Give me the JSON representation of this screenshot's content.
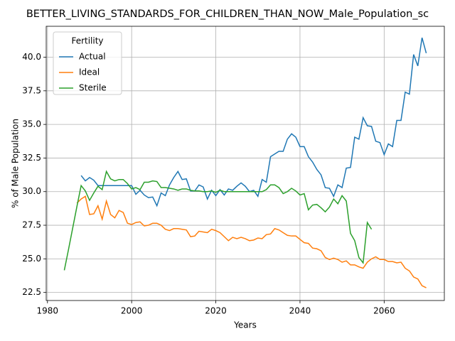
{
  "chart_data": {
    "type": "line",
    "title": "BETTER_LIVING_STANDARDS_FOR_CHILDREN_THAN_NOW_Male_Population_sc",
    "x_label": "Years",
    "y_label": "% of Male Population",
    "legend_title": "Fertility",
    "legend": "upper left",
    "grid": true,
    "x": [
      1984,
      1985,
      1986,
      1987,
      1988,
      1989,
      1990,
      1991,
      1992,
      1993,
      1994,
      1995,
      1996,
      1997,
      1998,
      1999,
      2000,
      2001,
      2002,
      2003,
      2004,
      2005,
      2006,
      2007,
      2008,
      2009,
      2010,
      2011,
      2012,
      2013,
      2014,
      2015,
      2016,
      2017,
      2018,
      2019,
      2020,
      2021,
      2022,
      2023,
      2024,
      2025,
      2026,
      2027,
      2028,
      2029,
      2030,
      2031,
      2032,
      2033,
      2034,
      2035,
      2036,
      2037,
      2038,
      2039,
      2040,
      2041,
      2042,
      2043,
      2044,
      2045,
      2046,
      2047,
      2048,
      2049,
      2050,
      2051,
      2052,
      2053,
      2054,
      2055,
      2056,
      2057,
      2058,
      2059,
      2060,
      2061,
      2062,
      2063,
      2064,
      2065,
      2066,
      2067,
      2068,
      2069,
      2070
    ],
    "series": [
      {
        "name": "Actual",
        "color": "#1f77b4",
        "values": [
          null,
          null,
          null,
          null,
          31.2,
          30.8,
          31.05,
          30.85,
          30.45,
          30.45,
          30.45,
          30.45,
          30.45,
          30.45,
          30.45,
          30.45,
          30.45,
          29.8,
          30.1,
          29.75,
          29.55,
          29.6,
          28.95,
          29.9,
          29.7,
          30.5,
          31.05,
          31.5,
          30.9,
          30.95,
          30.05,
          30.05,
          30.5,
          30.35,
          29.45,
          30.1,
          29.7,
          30.15,
          29.75,
          30.2,
          30.1,
          30.4,
          30.65,
          30.4,
          30.0,
          30.1,
          29.65,
          30.9,
          30.7,
          32.6,
          32.8,
          33.0,
          33.0,
          33.9,
          34.3,
          34.05,
          33.35,
          33.35,
          32.6,
          32.2,
          31.65,
          31.25,
          30.3,
          30.25,
          29.65,
          30.5,
          30.3,
          31.75,
          31.8,
          34.05,
          33.9,
          35.5,
          34.9,
          34.85,
          33.75,
          33.65,
          32.75,
          33.55,
          33.35,
          35.3,
          35.3,
          37.4,
          37.25,
          40.2,
          39.35,
          41.45,
          40.3
        ]
      },
      {
        "name": "Ideal",
        "color": "#ff7f0e",
        "values": [
          null,
          null,
          null,
          29.15,
          29.45,
          29.65,
          28.3,
          28.35,
          28.95,
          27.95,
          29.3,
          28.3,
          28.05,
          28.6,
          28.45,
          27.65,
          27.55,
          27.7,
          27.75,
          27.45,
          27.5,
          27.65,
          27.65,
          27.5,
          27.2,
          27.1,
          27.25,
          27.25,
          27.2,
          27.15,
          26.65,
          26.7,
          27.05,
          27.0,
          26.95,
          27.2,
          27.1,
          26.95,
          26.65,
          26.35,
          26.6,
          26.5,
          26.6,
          26.5,
          26.35,
          26.4,
          26.55,
          26.5,
          26.8,
          26.85,
          27.25,
          27.15,
          26.95,
          26.75,
          26.7,
          26.7,
          26.45,
          26.2,
          26.15,
          25.8,
          25.75,
          25.6,
          25.1,
          24.95,
          25.05,
          24.95,
          24.75,
          24.85,
          24.55,
          24.55,
          24.4,
          24.3,
          24.75,
          25.0,
          25.15,
          24.95,
          24.95,
          24.8,
          24.8,
          24.7,
          24.75,
          24.3,
          24.1,
          23.65,
          23.5,
          23.0,
          22.85
        ]
      },
      {
        "name": "Sterile",
        "color": "#2ca02c",
        "values": [
          24.15,
          25.7,
          27.3,
          28.9,
          30.45,
          30.05,
          29.35,
          29.9,
          30.4,
          30.15,
          31.5,
          30.95,
          30.8,
          30.9,
          30.9,
          30.6,
          30.2,
          30.3,
          30.15,
          30.7,
          30.7,
          30.8,
          30.75,
          30.3,
          30.3,
          30.25,
          30.2,
          30.1,
          30.2,
          30.2,
          30.1,
          30.05,
          30.05,
          30.0,
          30.0,
          30.05,
          29.95,
          30.1,
          30.0,
          30.0,
          30.0,
          30.0,
          30.0,
          30.0,
          30.0,
          30.0,
          30.0,
          30.0,
          30.15,
          30.5,
          30.5,
          30.3,
          29.85,
          30.0,
          30.25,
          30.05,
          29.75,
          29.85,
          28.65,
          29.0,
          29.05,
          28.8,
          28.5,
          28.85,
          29.45,
          29.1,
          29.7,
          29.3,
          26.9,
          26.35,
          25.1,
          24.7,
          27.7,
          27.2,
          null,
          null,
          null,
          null,
          null,
          null,
          null,
          null,
          null,
          null,
          null,
          null,
          null
        ]
      }
    ],
    "xlim": [
      1979.7,
      2074.3
    ],
    "ylim": [
      21.9,
      42.3
    ],
    "xticks": [
      1980,
      2000,
      2020,
      2040,
      2060
    ],
    "yticks": [
      {
        "value": 22.5,
        "label": "22.5"
      },
      {
        "value": 25,
        "label": "25.0"
      },
      {
        "value": 27.5,
        "label": "27.5"
      },
      {
        "value": 30,
        "label": "30.0"
      },
      {
        "value": 32.5,
        "label": "32.5"
      },
      {
        "value": 35,
        "label": "35.0"
      },
      {
        "value": 37.5,
        "label": "37.5"
      },
      {
        "value": 40,
        "label": "40.0"
      }
    ]
  }
}
